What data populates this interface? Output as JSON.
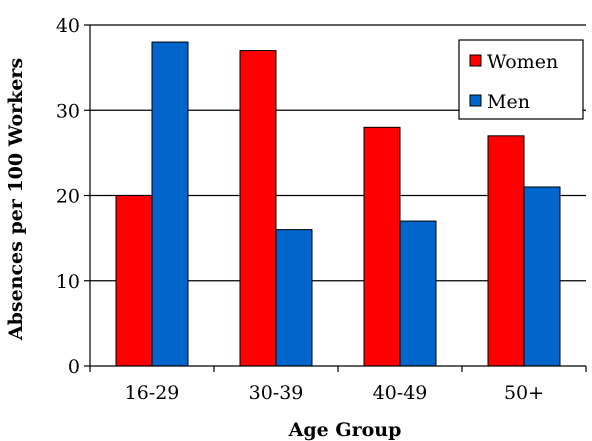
{
  "chart_data": {
    "type": "bar",
    "categories": [
      "16-29",
      "30-39",
      "40-49",
      "50+"
    ],
    "series": [
      {
        "name": "Women",
        "values": [
          20,
          37,
          28,
          27
        ],
        "color": "#ff0000"
      },
      {
        "name": "Men",
        "values": [
          38,
          16,
          17,
          21
        ],
        "color": "#0066cc"
      }
    ],
    "title": "",
    "xlabel": "Age Group",
    "ylabel": "Absences per 100 Workers",
    "ylim": [
      0,
      40
    ],
    "yticks": [
      0,
      10,
      20,
      30,
      40
    ],
    "grid": true,
    "legend_position": "top-right"
  }
}
